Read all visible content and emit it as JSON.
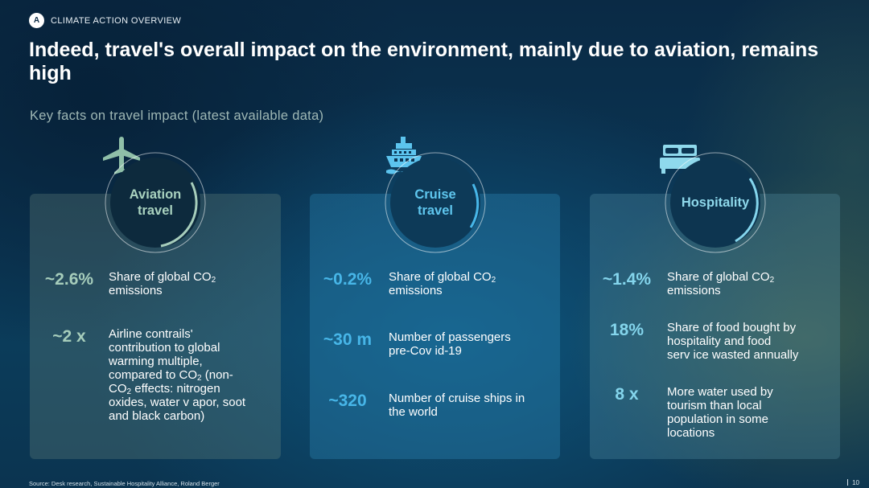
{
  "header": {
    "badge": "A",
    "section": "CLIMATE ACTION OVERVIEW"
  },
  "title": "Indeed, travel's overall impact on the environment, mainly due to aviation, remains high",
  "subtitle": "Key facts on travel impact (latest available data)",
  "colors": {
    "aviation_accent": "#a6cdbb",
    "cruise_accent": "#47b6e8",
    "hospitality_accent": "#84d5ec"
  },
  "cards": [
    {
      "id": "aviation",
      "icon": "airplane-icon",
      "label": "Aviation\ntravel",
      "stats": [
        {
          "value": "~2.6%",
          "desc_pre": "Share of global CO",
          "desc_sub": "2",
          "desc_post": "\nemissions"
        },
        {
          "value": "~2 x",
          "desc_pre": "Airline contrails'\ncontribution to global\nwarming multiple,\ncompared to CO",
          "desc_sub": "2",
          "desc_post": " (non-\nCO",
          "desc_sub2": "2",
          "desc_post2": " effects: nitrogen\noxides, water v apor, soot\nand black carbon)"
        }
      ]
    },
    {
      "id": "cruise",
      "icon": "cruise-ship-icon",
      "label": "Cruise\ntravel",
      "stats": [
        {
          "value": "~0.2%",
          "desc_pre": "Share of global CO",
          "desc_sub": "2",
          "desc_post": "\nemissions"
        },
        {
          "value": "~30 m",
          "desc": "Number of passengers\npre-Cov id-19"
        },
        {
          "value": "~320",
          "desc": "Number of cruise ships in\nthe world"
        }
      ]
    },
    {
      "id": "hospitality",
      "icon": "hotel-bed-icon",
      "label": "Hospitality",
      "stats": [
        {
          "value": "~1.4%",
          "desc_pre": "Share of global CO",
          "desc_sub": "2",
          "desc_post": "\nemissions"
        },
        {
          "value": "18%",
          "desc": "Share of food bought by\nhospitality and food\nserv ice wasted annually"
        },
        {
          "value": "8 x",
          "desc": "More water used by\ntourism than local\npopulation in some\nlocations"
        }
      ]
    }
  ],
  "footer": {
    "source": "Source: Desk research, Sustainable Hospitality Alliance, Roland Berger",
    "page": "10"
  }
}
